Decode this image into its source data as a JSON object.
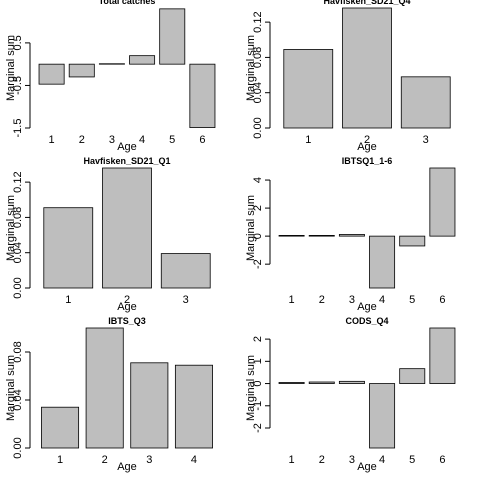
{
  "chart_data": [
    {
      "type": "bar",
      "title": "Total catches",
      "xlabel": "Age",
      "ylabel": "Marginal sum",
      "categories": [
        "1",
        "2",
        "3",
        "4",
        "5",
        "6"
      ],
      "values": [
        -0.47,
        -0.3,
        0.01,
        0.2,
        1.3,
        -1.49
      ],
      "color": "#bebebe",
      "ylim": [
        -1.5,
        1.32
      ],
      "yticks": [
        -1.5,
        -0.5,
        0.5
      ]
    },
    {
      "type": "bar",
      "title": "Havfisken_SD21_Q4",
      "xlabel": "Age",
      "ylabel": "Marginal sum",
      "categories": [
        "1",
        "2",
        "3"
      ],
      "values": [
        0.089,
        0.136,
        0.058
      ],
      "color": "#bebebe",
      "ylim": [
        0,
        0.136
      ],
      "yticks": [
        {
          "value": 0,
          "label": "0.00"
        },
        0.04,
        0.08,
        0.12
      ]
    },
    {
      "type": "bar",
      "title": "Havfisken_SD21_Q1",
      "xlabel": "Age",
      "ylabel": "Marginal sum",
      "categories": [
        "1",
        "2",
        "3"
      ],
      "values": [
        0.091,
        0.136,
        0.039
      ],
      "color": "#bebebe",
      "ylim": [
        0,
        0.136
      ],
      "yticks": [
        {
          "value": 0,
          "label": "0.00"
        },
        0.04,
        0.08,
        0.12
      ]
    },
    {
      "type": "bar",
      "title": "IBTSQ1_1-6",
      "xlabel": "Age",
      "ylabel": "Marginal sum",
      "categories": [
        "1",
        "2",
        "3",
        "4",
        "5",
        "6"
      ],
      "values": [
        0.05,
        0.05,
        0.12,
        -3.7,
        -0.7,
        4.86
      ],
      "color": "#bebebe",
      "ylim": [
        -3.7,
        4.86
      ],
      "yticks": [
        -2,
        0,
        2,
        4
      ]
    },
    {
      "type": "bar",
      "title": "IBTS_Q3",
      "xlabel": "Age",
      "ylabel": "Marginal sum",
      "categories": [
        "1",
        "2",
        "3",
        "4"
      ],
      "values": [
        0.034,
        0.1,
        0.071,
        0.069
      ],
      "color": "#bebebe",
      "ylim": [
        0,
        0.1
      ],
      "yticks": [
        {
          "value": 0,
          "label": "0.00"
        },
        0.04,
        0.08
      ]
    },
    {
      "type": "bar",
      "title": "CODS_Q4",
      "xlabel": "Age",
      "ylabel": "Marginal sum",
      "categories": [
        "1",
        "2",
        "3",
        "4",
        "5",
        "6"
      ],
      "values": [
        0.05,
        0.07,
        0.1,
        -2.9,
        0.67,
        2.5
      ],
      "color": "#bebebe",
      "ylim": [
        -2.9,
        2.5
      ],
      "yticks": [
        -2,
        -1,
        0,
        1,
        2
      ]
    }
  ]
}
